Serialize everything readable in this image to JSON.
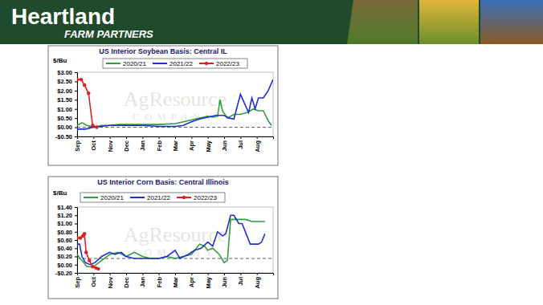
{
  "header": {
    "title": "Heartland",
    "subtitle": "FARM PARTNERS"
  },
  "chart_data": [
    {
      "type": "line",
      "title": "US Interior Soybean Basis: Central IL",
      "y_label": "$/Bu",
      "watermark": [
        "AgResource",
        "COMPANY"
      ],
      "xlim": [
        0,
        12
      ],
      "xticks": [
        {
          "value": 0,
          "label": "Sep"
        },
        {
          "value": 1,
          "label": "Oct"
        },
        {
          "value": 2,
          "label": "Nov"
        },
        {
          "value": 3,
          "label": "Dec"
        },
        {
          "value": 4,
          "label": "Jan"
        },
        {
          "value": 5,
          "label": "Feb"
        },
        {
          "value": 6,
          "label": "Mar"
        },
        {
          "value": 7,
          "label": "Apr"
        },
        {
          "value": 8,
          "label": "May"
        },
        {
          "value": 9,
          "label": "Jun"
        },
        {
          "value": 10,
          "label": "Jul"
        },
        {
          "value": 11,
          "label": "Aug"
        }
      ],
      "ylim": [
        -0.5,
        3.0
      ],
      "yticks": [
        {
          "value": -0.5,
          "label": "-$0.50"
        },
        {
          "value": 0,
          "label": "$0.00"
        },
        {
          "value": 0.5,
          "label": "$0.50"
        },
        {
          "value": 1.0,
          "label": "$1.00"
        },
        {
          "value": 1.5,
          "label": "$1.50"
        },
        {
          "value": 2.0,
          "label": "$2.00"
        },
        {
          "value": 2.5,
          "label": "$2.50"
        },
        {
          "value": 3.0,
          "label": "$3.00"
        }
      ],
      "reference_lines": [
        0
      ],
      "grid": false,
      "legend": "top",
      "series": [
        {
          "name": "2020/21",
          "color": "#2e9e3e",
          "marker": "none",
          "x": [
            0,
            0.3,
            0.6,
            1,
            1.5,
            2,
            2.5,
            3,
            4,
            5,
            6,
            6.5,
            7,
            7.5,
            8,
            8.3,
            8.6,
            8.75,
            8.9,
            9.2,
            9.6,
            10,
            10.4,
            10.8,
            11.1,
            11.4,
            11.7,
            11.9
          ],
          "values": [
            0.1,
            0.25,
            0.1,
            0.0,
            0.1,
            0.1,
            0.15,
            0.15,
            0.15,
            0.15,
            0.2,
            0.3,
            0.4,
            0.5,
            0.6,
            0.55,
            0.6,
            1.5,
            0.9,
            0.5,
            0.7,
            0.7,
            0.8,
            1.0,
            0.9,
            0.9,
            0.35,
            0.1
          ]
        },
        {
          "name": "2021/22",
          "color": "#1f2fd0",
          "marker": "none",
          "x": [
            0,
            0.5,
            1,
            1.5,
            2,
            3,
            4,
            5,
            5.5,
            6,
            6.5,
            7,
            7.5,
            8,
            8.5,
            9,
            9.3,
            9.6,
            10,
            10.3,
            10.5,
            10.7,
            10.9,
            11.1,
            11.4,
            11.7,
            12
          ],
          "values": [
            -0.1,
            -0.1,
            0.0,
            0.05,
            0.1,
            0.1,
            0.1,
            0.05,
            0.05,
            0.05,
            0.1,
            0.3,
            0.45,
            0.55,
            0.65,
            0.65,
            0.5,
            0.45,
            1.8,
            1.2,
            0.8,
            1.6,
            1.0,
            1.6,
            1.6,
            2.0,
            2.6
          ]
        },
        {
          "name": "2022/23",
          "color": "#e02020",
          "marker": "circle",
          "x": [
            0,
            0.25,
            0.45,
            0.7,
            0.95,
            1.2
          ],
          "values": [
            2.6,
            2.6,
            2.3,
            1.85,
            0.1,
            0.0
          ]
        }
      ]
    },
    {
      "type": "line",
      "title": "US Interior Corn Basis: Central Illinois",
      "y_label": "$/Bu",
      "watermark": [
        "AgResource",
        "COMPANY"
      ],
      "xlim": [
        0,
        12
      ],
      "xticks": [
        {
          "value": 0,
          "label": "Sep"
        },
        {
          "value": 1,
          "label": "Oct"
        },
        {
          "value": 2,
          "label": "Nov"
        },
        {
          "value": 3,
          "label": "Dec"
        },
        {
          "value": 4,
          "label": "Jan"
        },
        {
          "value": 5,
          "label": "Feb"
        },
        {
          "value": 6,
          "label": "Mar"
        },
        {
          "value": 7,
          "label": "Apr"
        },
        {
          "value": 8,
          "label": "May"
        },
        {
          "value": 9,
          "label": "Jun"
        },
        {
          "value": 10,
          "label": "Jul"
        },
        {
          "value": 11,
          "label": "Aug"
        }
      ],
      "ylim": [
        -0.2,
        1.4
      ],
      "yticks": [
        {
          "value": -0.2,
          "label": "-$0.20"
        },
        {
          "value": 0,
          "label": "$0.00"
        },
        {
          "value": 0.2,
          "label": "$0.20"
        },
        {
          "value": 0.4,
          "label": "$0.40"
        },
        {
          "value": 0.6,
          "label": "$0.60"
        },
        {
          "value": 0.8,
          "label": "$0.80"
        },
        {
          "value": 1.0,
          "label": "$1.00"
        },
        {
          "value": 1.2,
          "label": "$1.20"
        },
        {
          "value": 1.4,
          "label": "$1.40"
        }
      ],
      "reference_lines": [
        0.15
      ],
      "grid": false,
      "legend": "top-left",
      "series": [
        {
          "name": "2020/21",
          "color": "#2e9e3e",
          "marker": "none",
          "x": [
            0,
            0.3,
            0.6,
            1,
            1.5,
            2,
            2.5,
            3,
            3.5,
            4,
            4.5,
            5,
            5.5,
            6,
            6.5,
            7,
            7.5,
            7.8,
            8,
            8.3,
            8.7,
            9,
            9.2,
            9.4,
            9.7,
            10.3,
            10.7,
            11.2,
            11.5
          ],
          "values": [
            0.25,
            0.1,
            -0.05,
            -0.05,
            0.1,
            0.25,
            0.3,
            0.2,
            0.3,
            0.2,
            0.15,
            0.15,
            0.2,
            0.15,
            0.2,
            0.25,
            0.5,
            0.45,
            0.35,
            0.4,
            0.25,
            0.05,
            0.1,
            1.1,
            1.1,
            1.1,
            1.05,
            1.05,
            1.05
          ]
        },
        {
          "name": "2021/22",
          "color": "#1f2fd0",
          "marker": "none",
          "x": [
            0,
            0.15,
            0.3,
            0.5,
            0.8,
            1.1,
            1.5,
            2,
            2.3,
            2.7,
            3,
            3.5,
            4,
            4.5,
            5,
            5.5,
            6,
            6.3,
            6.8,
            7.2,
            7.6,
            8,
            8.3,
            8.6,
            8.9,
            9.1,
            9.4,
            9.6,
            9.9,
            10.1,
            10.4,
            10.6,
            11.1,
            11.3,
            11.5
          ],
          "values": [
            0.5,
            0.5,
            0.2,
            0.05,
            0.0,
            0.05,
            0.2,
            0.3,
            0.25,
            0.3,
            0.2,
            0.15,
            0.15,
            0.15,
            0.15,
            0.2,
            0.35,
            0.15,
            0.25,
            0.35,
            0.4,
            0.55,
            0.45,
            0.8,
            0.7,
            0.75,
            1.2,
            1.2,
            1.0,
            1.0,
            0.7,
            0.5,
            0.5,
            0.55,
            0.75
          ]
        },
        {
          "name": "2022/23",
          "color": "#e02020",
          "marker": "circle",
          "x": [
            0,
            0.2,
            0.35,
            0.45,
            0.55,
            0.75,
            0.95,
            1.15,
            1.3
          ],
          "values": [
            0.65,
            0.65,
            0.7,
            0.75,
            0.3,
            0.1,
            -0.05,
            -0.08,
            -0.1
          ]
        }
      ]
    }
  ]
}
